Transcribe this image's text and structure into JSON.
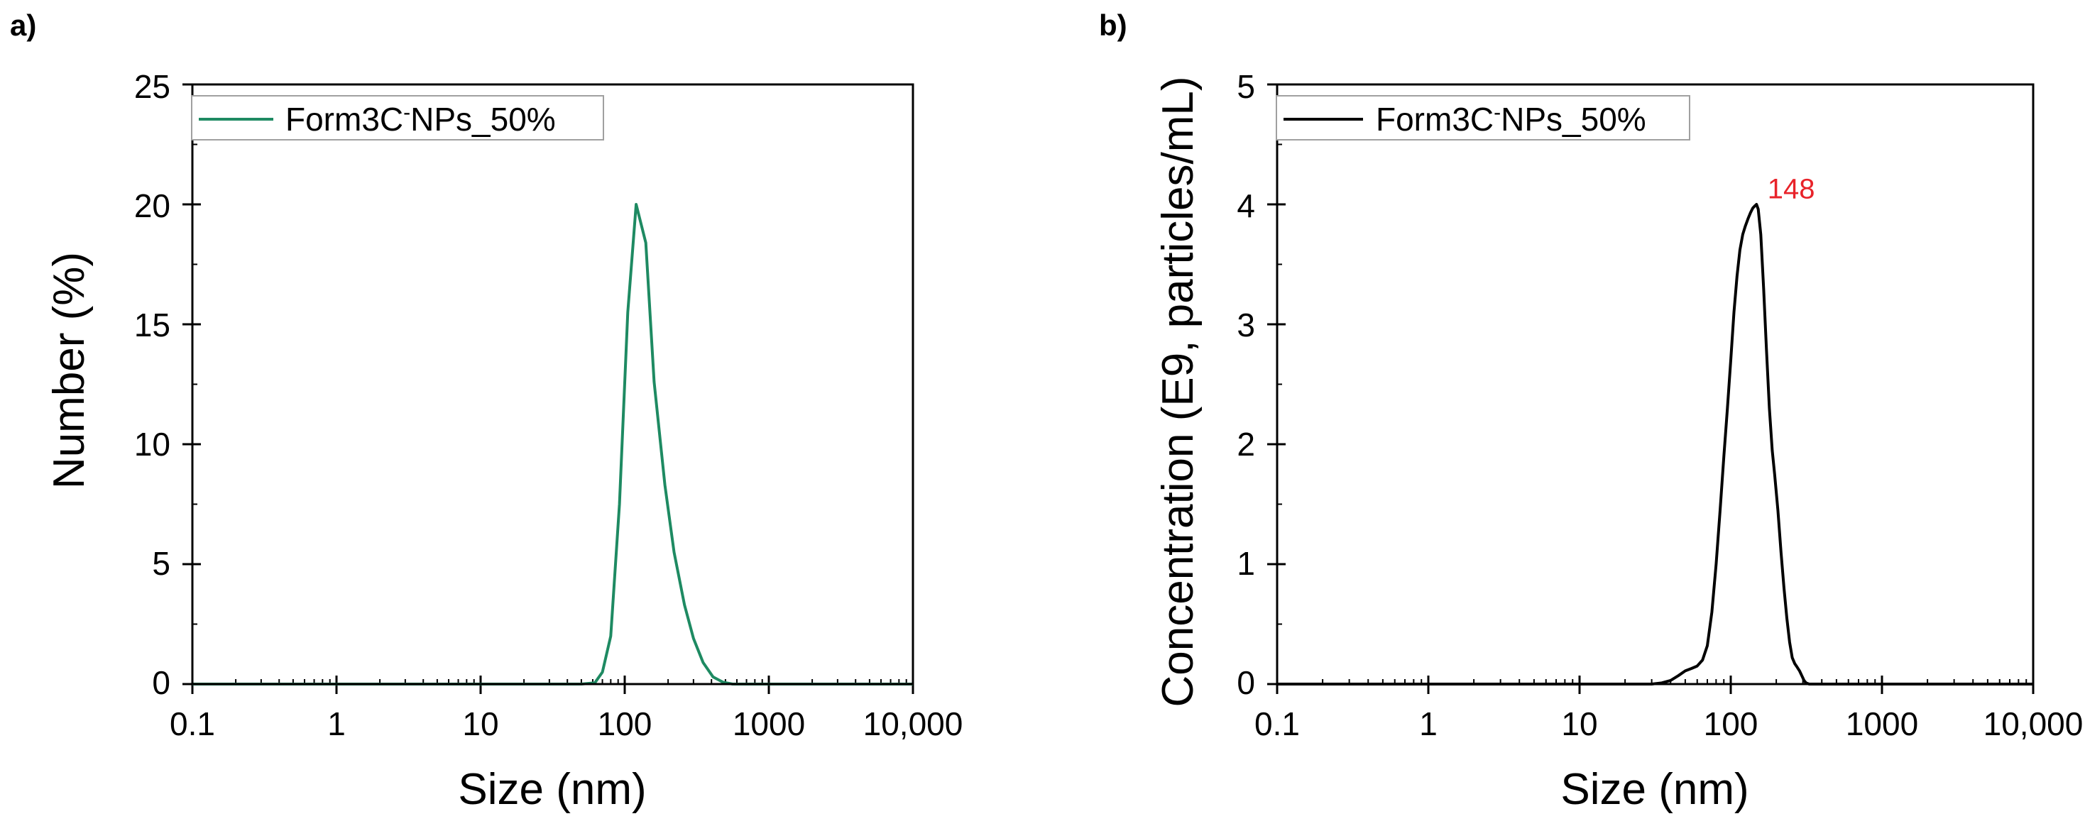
{
  "chart_data": [
    {
      "type": "line",
      "panel_label": "a)",
      "xscale": "log",
      "xlim": [
        0.1,
        10000
      ],
      "ylim": [
        0,
        25
      ],
      "xticks": [
        0.1,
        1,
        10,
        100,
        1000,
        10000
      ],
      "xtick_labels": [
        "0.1",
        "1",
        "10",
        "100",
        "1000",
        "10,000"
      ],
      "yticks": [
        0,
        5,
        10,
        15,
        20,
        25
      ],
      "ytick_labels": [
        "0",
        "5",
        "10",
        "15",
        "20",
        "25"
      ],
      "xlabel": "Size (nm)",
      "ylabel": "Number (%)",
      "grid": false,
      "legend": {
        "position": "top-left",
        "label_main": "Form3C",
        "label_sup": "-",
        "label_tail": "NPs_50%"
      },
      "series": [
        {
          "name": "Form3C-NPs_50%",
          "color": "#1e8a62",
          "x": [
            0.1,
            50,
            62,
            70,
            80,
            92,
            105,
            120,
            140,
            160,
            190,
            220,
            260,
            300,
            350,
            410,
            480,
            560,
            10000
          ],
          "y": [
            0,
            0,
            0.05,
            0.5,
            2.0,
            7.5,
            15.5,
            20.0,
            18.4,
            12.6,
            8.3,
            5.5,
            3.3,
            1.9,
            0.9,
            0.3,
            0.08,
            0,
            0
          ]
        }
      ]
    },
    {
      "type": "line",
      "panel_label": "b)",
      "xscale": "log",
      "xlim": [
        0.1,
        10000
      ],
      "ylim": [
        0,
        5
      ],
      "xticks": [
        0.1,
        1,
        10,
        100,
        1000,
        10000
      ],
      "xtick_labels": [
        "0.1",
        "1",
        "10",
        "100",
        "1000",
        "10,000"
      ],
      "yticks": [
        0,
        1,
        2,
        3,
        4,
        5
      ],
      "ytick_labels": [
        "0",
        "1",
        "2",
        "3",
        "4",
        "5"
      ],
      "xlabel": "Size (nm)",
      "ylabel": "Concentration (E9, particles/mL)",
      "grid": false,
      "legend": {
        "position": "top-left",
        "label_main": "Form3C",
        "label_sup": "-",
        "label_tail": "NPs_50%"
      },
      "annotations": [
        {
          "text": "148",
          "x": 175,
          "y": 4.05,
          "color": "#e8232a"
        }
      ],
      "series": [
        {
          "name": "Form3C-NPs_50%",
          "color": "#000000",
          "x": [
            0.1,
            30,
            35,
            40,
            45,
            50,
            55,
            60,
            65,
            70,
            75,
            80,
            85,
            90,
            95,
            100,
            105,
            110,
            115,
            120,
            125,
            130,
            135,
            140,
            145,
            148,
            152,
            158,
            165,
            172,
            180,
            188,
            195,
            205,
            215,
            225,
            235,
            245,
            255,
            265,
            275,
            285,
            295,
            305,
            315,
            330,
            10000
          ],
          "y": [
            0,
            0,
            0.01,
            0.03,
            0.07,
            0.11,
            0.13,
            0.15,
            0.2,
            0.32,
            0.6,
            1.0,
            1.45,
            1.9,
            2.3,
            2.7,
            3.1,
            3.4,
            3.62,
            3.75,
            3.82,
            3.88,
            3.93,
            3.97,
            3.99,
            4.0,
            3.96,
            3.75,
            3.3,
            2.8,
            2.3,
            1.95,
            1.75,
            1.45,
            1.1,
            0.8,
            0.55,
            0.35,
            0.22,
            0.17,
            0.14,
            0.11,
            0.07,
            0.03,
            0.01,
            0,
            0
          ]
        }
      ]
    }
  ]
}
